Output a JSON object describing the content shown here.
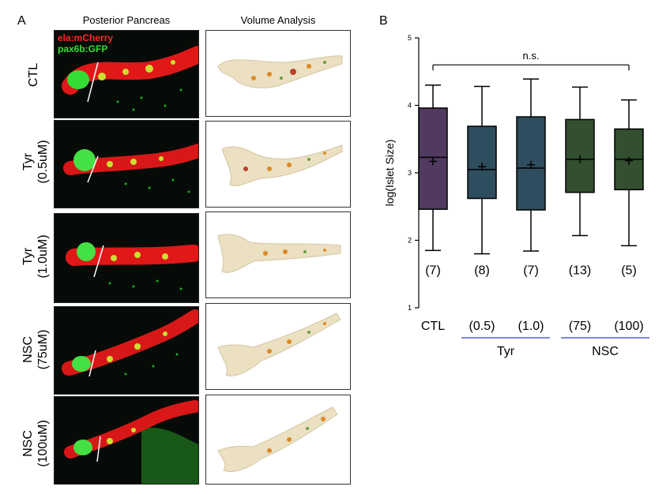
{
  "panel_a": {
    "letter": "A",
    "col_headers": [
      "Posterior Pancreas",
      "Volume Analysis"
    ],
    "legend": [
      {
        "text": "ela:mCherry",
        "color": "#ff2020"
      },
      {
        "text": "pax6b:GFP",
        "color": "#22dd22"
      }
    ],
    "rows": [
      {
        "label": "CTL"
      },
      {
        "label": "Tyr\n(0.5uM)"
      },
      {
        "label": "Tyr\n(1.0uM)"
      },
      {
        "label": "NSC\n(75uM)"
      },
      {
        "label": "NSC\n(100uM)"
      }
    ]
  },
  "panel_b": {
    "letter": "B",
    "significance": "n.s.",
    "group_labels": [
      "Tyr",
      "NSC"
    ]
  },
  "chart_data": {
    "type": "boxplot",
    "title": "",
    "xlabel": "",
    "ylabel": "log(Islet Size)",
    "ylim": [
      1,
      5
    ],
    "yticks": [
      1,
      2,
      3,
      4,
      5
    ],
    "grid": false,
    "categories": [
      "CTL",
      "(0.5)",
      "(1.0)",
      "(75)",
      "(100)"
    ],
    "n_labels": [
      "(7)",
      "(8)",
      "(7)",
      "(13)",
      "(5)"
    ],
    "colors": [
      "#503a60",
      "#2e4d5e",
      "#2e4d5e",
      "#334f30",
      "#334f30"
    ],
    "boxes": [
      {
        "min": 1.85,
        "q1": 2.46,
        "median": 3.23,
        "mean": 3.17,
        "q3": 3.96,
        "max": 4.3
      },
      {
        "min": 1.8,
        "q1": 2.62,
        "median": 3.05,
        "mean": 3.09,
        "q3": 3.69,
        "max": 4.28
      },
      {
        "min": 1.84,
        "q1": 2.45,
        "median": 3.07,
        "mean": 3.12,
        "q3": 3.83,
        "max": 4.39
      },
      {
        "min": 2.07,
        "q1": 2.71,
        "median": 3.2,
        "mean": 3.2,
        "q3": 3.79,
        "max": 4.27
      },
      {
        "min": 1.92,
        "q1": 2.75,
        "median": 3.2,
        "mean": 3.18,
        "q3": 3.65,
        "max": 4.08
      }
    ]
  }
}
